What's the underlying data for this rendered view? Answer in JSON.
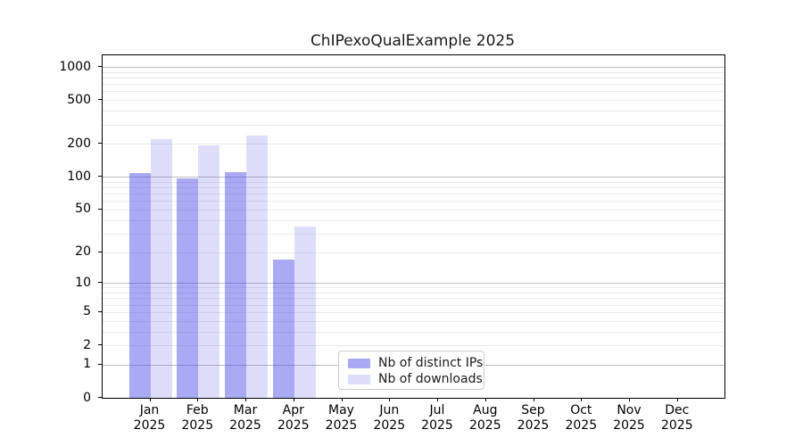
{
  "title": "ChIPexoQualExample 2025",
  "chart_data": {
    "type": "bar",
    "title": "ChIPexoQualExample 2025",
    "categories": [
      "Jan",
      "Feb",
      "Mar",
      "Apr",
      "May",
      "Jun",
      "Jul",
      "Aug",
      "Sep",
      "Oct",
      "Nov",
      "Dec"
    ],
    "year_label": "2025",
    "series": [
      {
        "name": "Nb of distinct IPs",
        "color": "rgba(62,62,230,0.44)",
        "values": [
          108,
          97,
          110,
          17,
          0,
          0,
          0,
          0,
          0,
          0,
          0,
          0
        ]
      },
      {
        "name": "Nb of downloads",
        "color": "rgba(62,62,230,0.17)",
        "values": [
          221,
          195,
          236,
          35,
          0,
          0,
          0,
          0,
          0,
          0,
          0,
          0
        ]
      }
    ],
    "xlabel": "",
    "ylabel": "",
    "yscale": "log1p",
    "ylim": [
      0,
      1275
    ],
    "yticks": [
      0,
      1,
      2,
      5,
      10,
      20,
      50,
      100,
      200,
      500,
      1000
    ],
    "major_gridlines": [
      1,
      10,
      100,
      1000
    ],
    "minor_gridlines": [
      2,
      3,
      4,
      5,
      6,
      7,
      8,
      9,
      20,
      30,
      40,
      50,
      60,
      70,
      80,
      90,
      200,
      300,
      400,
      500,
      600,
      700,
      800,
      900
    ],
    "grid": "horizontal",
    "legend_position": "lower center (inside axes)"
  },
  "legend": {
    "items": [
      {
        "label": "Nb of distinct IPs",
        "color": "rgba(62,62,230,0.44)"
      },
      {
        "label": "Nb of downloads",
        "color": "rgba(62,62,230,0.17)"
      }
    ]
  },
  "colors": {
    "background": "#ffffff",
    "spine": "#000000",
    "major_grid": "#bdbdbd",
    "minor_grid": "#e9e9e9",
    "text": "#1a1a1a"
  }
}
